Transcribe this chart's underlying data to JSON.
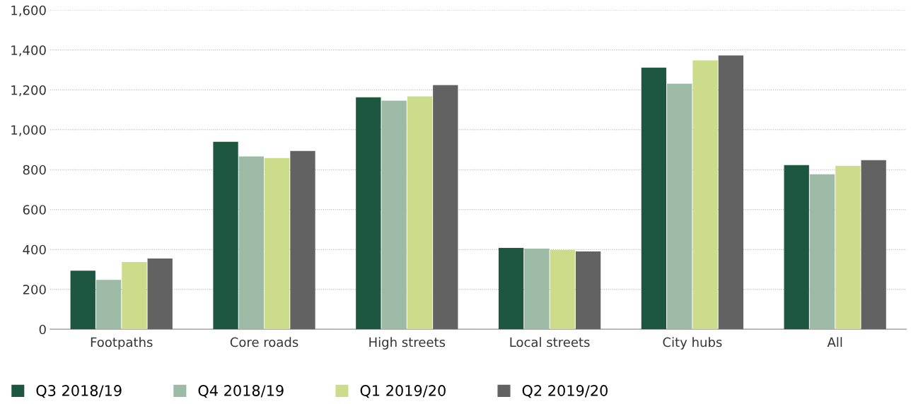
{
  "chart_data": {
    "type": "bar",
    "categories": [
      "Footpaths",
      "Core roads",
      "High streets",
      "Local streets",
      "City hubs",
      "All"
    ],
    "series": [
      {
        "name": "Q3 2018/19",
        "color": "#1e5741",
        "values": [
          294,
          940,
          1163,
          408,
          1312,
          823
        ]
      },
      {
        "name": "Q4 2018/19",
        "color": "#9dbaa6",
        "values": [
          248,
          866,
          1146,
          404,
          1231,
          777
        ]
      },
      {
        "name": "Q1 2019/20",
        "color": "#ccdc8b",
        "values": [
          337,
          858,
          1167,
          397,
          1348,
          819
        ]
      },
      {
        "name": "Q2 2019/20",
        "color": "#626262",
        "values": [
          355,
          894,
          1224,
          390,
          1373,
          848
        ]
      }
    ],
    "ylim": [
      0,
      1600
    ],
    "yticks": [
      0,
      200,
      400,
      600,
      800,
      {
        "value": 1000,
        "label": "1,000"
      },
      {
        "value": 1200,
        "label": "1,200"
      },
      {
        "value": 1400,
        "label": "1,400"
      },
      {
        "value": 1600,
        "label": "1,600"
      }
    ],
    "grid": "y",
    "legend": "bottom"
  }
}
